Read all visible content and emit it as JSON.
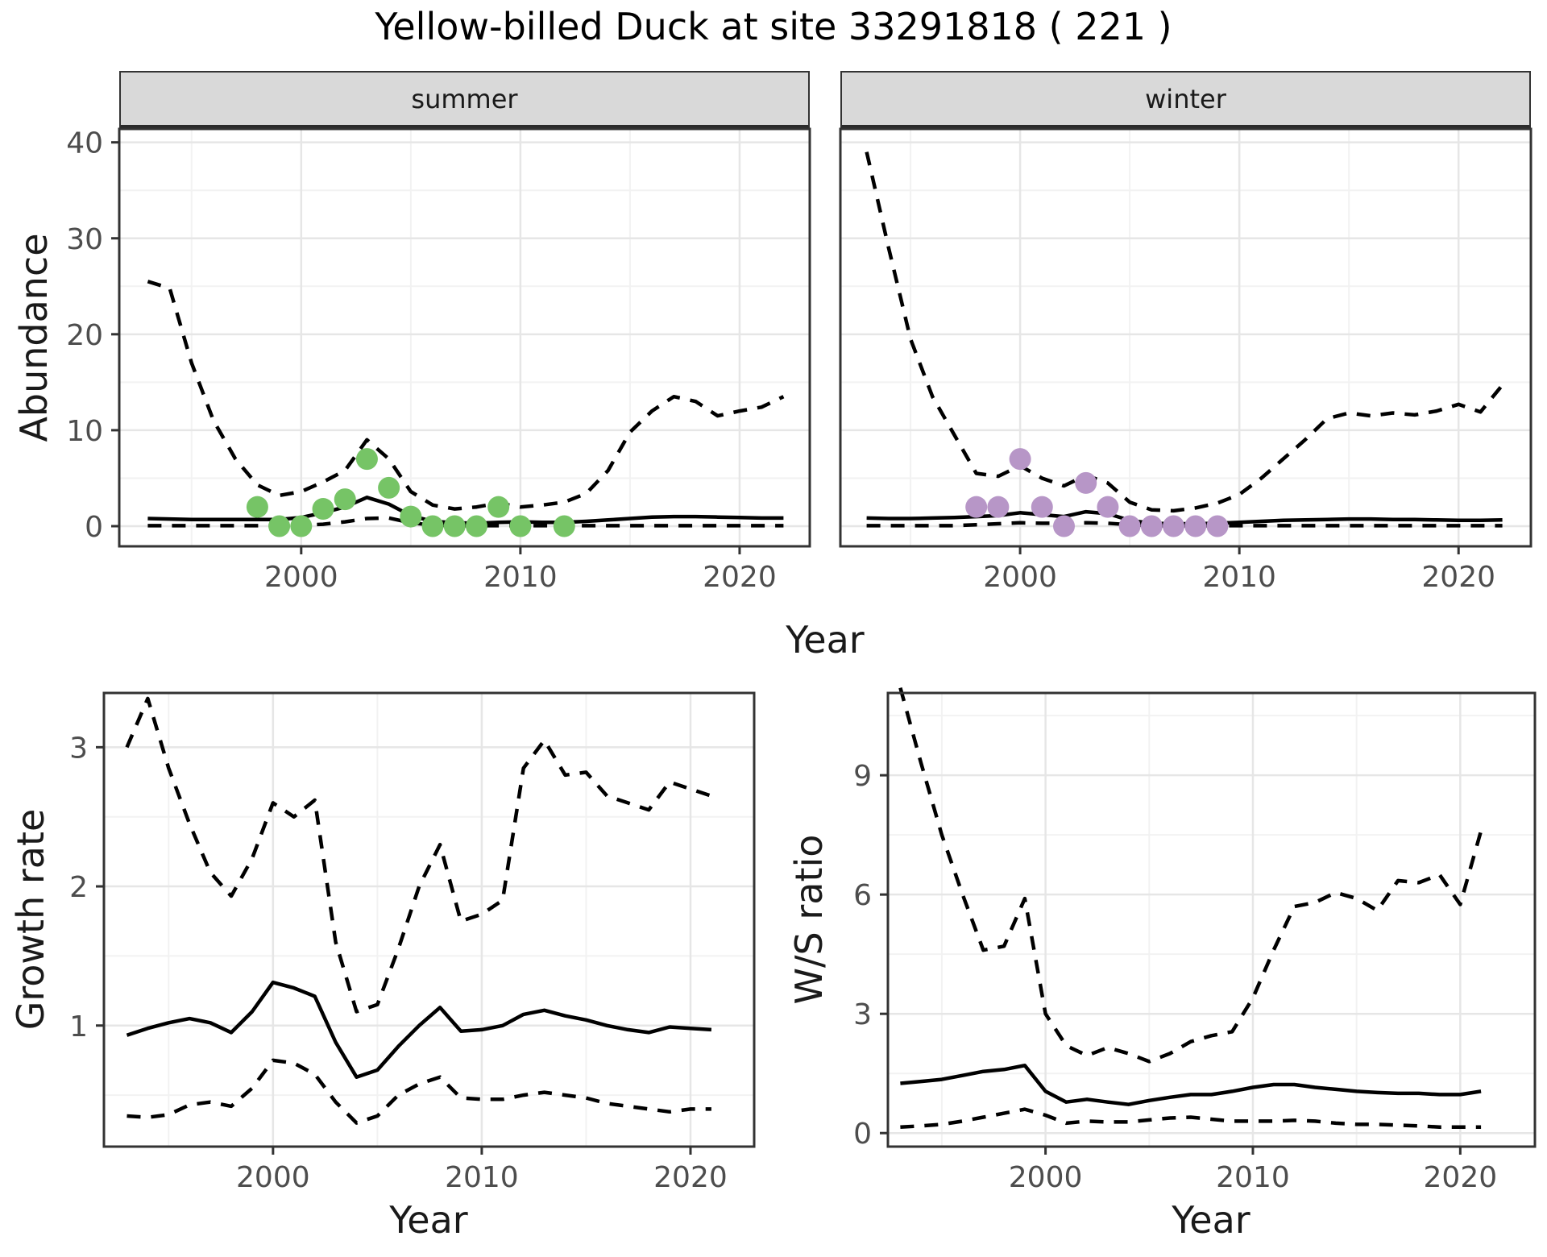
{
  "title": "Yellow-billed Duck at site 33291818 ( 221 )",
  "colors": {
    "summer_points": "#76c466",
    "winter_points": "#b796c7",
    "line": "#000000",
    "strip_background": "#d9d9d9",
    "grid_major": "#e6e6e6",
    "grid_minor": "#f2f2f2",
    "panel_border": "#333333",
    "axis_text": "#4d4d4d"
  },
  "chart_data": [
    {
      "id": "abundance-summer",
      "type": "line",
      "facet_label": "summer",
      "xlabel": "Year",
      "ylabel": "Abundance",
      "xlim": [
        1991.7,
        2023.2
      ],
      "ylim": [
        -2.1,
        41.4
      ],
      "xticks": [
        2000,
        2010,
        2020
      ],
      "yticks": [
        0,
        10,
        20,
        30,
        40
      ],
      "x": [
        1993,
        1994,
        1995,
        1996,
        1997,
        1998,
        1999,
        2000,
        2001,
        2002,
        2003,
        2004,
        2005,
        2006,
        2007,
        2008,
        2009,
        2010,
        2011,
        2012,
        2013,
        2014,
        2015,
        2016,
        2017,
        2018,
        2019,
        2020,
        2021,
        2022
      ],
      "series": [
        {
          "name": "upper-95-ci",
          "style": "dashed",
          "values": [
            25.5,
            24.8,
            17,
            11,
            7,
            4.3,
            3.2,
            3.6,
            4.6,
            5.8,
            9,
            7,
            3.6,
            2.2,
            1.8,
            2,
            2.4,
            2,
            2.2,
            2.5,
            3.4,
            5.8,
            9.8,
            12,
            13.5,
            13,
            11.5,
            12,
            12.4,
            13.5
          ]
        },
        {
          "name": "modelled-abundance",
          "style": "solid",
          "values": [
            0.8,
            0.75,
            0.7,
            0.7,
            0.7,
            0.7,
            0.7,
            0.9,
            1.4,
            2.0,
            3.0,
            2.3,
            1.1,
            0.5,
            0.35,
            0.3,
            0.4,
            0.45,
            0.4,
            0.4,
            0.5,
            0.65,
            0.8,
            0.95,
            1.0,
            1.0,
            0.95,
            0.9,
            0.85,
            0.85
          ]
        },
        {
          "name": "lower-95-ci",
          "style": "dashed",
          "values": [
            0.05,
            0.05,
            0.05,
            0.05,
            0.05,
            0.05,
            0.05,
            0.1,
            0.2,
            0.45,
            0.8,
            0.85,
            0.35,
            0.1,
            0.05,
            0.05,
            0.05,
            0.05,
            0.05,
            0.05,
            0.05,
            0.05,
            0.05,
            0.05,
            0.05,
            0.05,
            0.05,
            0.05,
            0.05,
            0.05
          ]
        }
      ],
      "points": {
        "name": "observed-counts-summer",
        "color": "#76c466",
        "x": [
          1998,
          1999,
          2000,
          2001,
          2002,
          2003,
          2004,
          2005,
          2006,
          2007,
          2008,
          2009,
          2010,
          2012
        ],
        "y": [
          2,
          0,
          0,
          1.8,
          2.8,
          7,
          4,
          1,
          0,
          0,
          0,
          2,
          0,
          0
        ]
      }
    },
    {
      "id": "abundance-winter",
      "type": "line",
      "facet_label": "winter",
      "xlabel": "Year",
      "ylabel": "Abundance",
      "xlim": [
        1991.8,
        2023.3
      ],
      "ylim": [
        -2.1,
        41.4
      ],
      "xticks": [
        2000,
        2010,
        2020
      ],
      "yticks": [
        0,
        10,
        20,
        30,
        40
      ],
      "x": [
        1993,
        1994,
        1995,
        1996,
        1997,
        1998,
        1999,
        2000,
        2001,
        2002,
        2003,
        2004,
        2005,
        2006,
        2007,
        2008,
        2009,
        2010,
        2011,
        2012,
        2013,
        2014,
        2015,
        2016,
        2017,
        2018,
        2019,
        2020,
        2021,
        2022
      ],
      "series": [
        {
          "name": "upper-95-ci",
          "style": "dashed",
          "values": [
            39,
            29,
            19.5,
            13.5,
            9.5,
            5.5,
            5.2,
            6.3,
            5.0,
            4.2,
            5.3,
            4.5,
            2.5,
            1.7,
            1.6,
            1.9,
            2.4,
            3.3,
            5.0,
            7.0,
            9.0,
            11.2,
            11.8,
            11.5,
            11.8,
            11.6,
            12.0,
            12.7,
            11.9,
            14.7
          ]
        },
        {
          "name": "modelled-abundance",
          "style": "solid",
          "values": [
            0.85,
            0.8,
            0.8,
            0.85,
            0.9,
            1.0,
            1.1,
            1.4,
            1.2,
            1.0,
            1.5,
            1.3,
            0.6,
            0.3,
            0.25,
            0.25,
            0.3,
            0.4,
            0.5,
            0.6,
            0.65,
            0.7,
            0.75,
            0.75,
            0.7,
            0.7,
            0.65,
            0.6,
            0.6,
            0.65
          ]
        },
        {
          "name": "lower-95-ci",
          "style": "dashed",
          "values": [
            0.05,
            0.05,
            0.05,
            0.05,
            0.05,
            0.15,
            0.25,
            0.35,
            0.3,
            0.3,
            0.35,
            0.3,
            0.15,
            0.05,
            0.05,
            0.05,
            0.05,
            0.05,
            0.05,
            0.05,
            0.05,
            0.05,
            0.05,
            0.05,
            0.05,
            0.05,
            0.05,
            0.05,
            0.05,
            0.05
          ]
        }
      ],
      "points": {
        "name": "observed-counts-winter",
        "color": "#b796c7",
        "x": [
          1998,
          1999,
          2000,
          2001,
          2002,
          2003,
          2004,
          2005,
          2006,
          2007,
          2008,
          2009
        ],
        "y": [
          2,
          2,
          7,
          2,
          0,
          4.5,
          2,
          0,
          0,
          0,
          0,
          0
        ]
      }
    },
    {
      "id": "growth-rate",
      "type": "line",
      "facet_label": "",
      "xlabel": "Year",
      "ylabel": "Growth rate",
      "xlim": [
        1991.9,
        2023.05
      ],
      "ylim": [
        0.13,
        3.39
      ],
      "xticks": [
        2000,
        2010,
        2020
      ],
      "yticks": [
        1,
        2,
        3
      ],
      "x": [
        1993,
        1994,
        1995,
        1996,
        1997,
        1998,
        1999,
        2000,
        2001,
        2002,
        2003,
        2004,
        2005,
        2006,
        2007,
        2008,
        2009,
        2010,
        2011,
        2012,
        2013,
        2014,
        2015,
        2016,
        2017,
        2018,
        2019,
        2020,
        2021
      ],
      "series": [
        {
          "name": "upper-95-ci",
          "style": "dashed",
          "values": [
            3.0,
            3.35,
            2.85,
            2.45,
            2.1,
            1.93,
            2.2,
            2.6,
            2.5,
            2.62,
            1.6,
            1.1,
            1.15,
            1.55,
            2.0,
            2.3,
            1.75,
            1.8,
            1.9,
            2.85,
            3.05,
            2.8,
            2.82,
            2.65,
            2.6,
            2.55,
            2.75,
            2.7,
            2.65
          ]
        },
        {
          "name": "modelled-growth-rate",
          "style": "solid",
          "values": [
            0.93,
            0.98,
            1.02,
            1.05,
            1.02,
            0.95,
            1.1,
            1.31,
            1.27,
            1.21,
            0.88,
            0.63,
            0.68,
            0.85,
            1.0,
            1.13,
            0.96,
            0.97,
            1.0,
            1.08,
            1.11,
            1.07,
            1.04,
            1.0,
            0.97,
            0.95,
            0.99,
            0.98,
            0.97
          ]
        },
        {
          "name": "lower-95-ci",
          "style": "dashed",
          "values": [
            0.35,
            0.34,
            0.36,
            0.43,
            0.45,
            0.42,
            0.55,
            0.75,
            0.73,
            0.65,
            0.45,
            0.3,
            0.35,
            0.5,
            0.58,
            0.63,
            0.48,
            0.47,
            0.47,
            0.5,
            0.52,
            0.5,
            0.48,
            0.44,
            0.42,
            0.4,
            0.38,
            0.4,
            0.4
          ]
        }
      ],
      "points": null
    },
    {
      "id": "ws-ratio",
      "type": "line",
      "facet_label": "",
      "xlabel": "Year",
      "ylabel": "W/S ratio",
      "xlim": [
        1992.4,
        2023.6
      ],
      "ylim": [
        -0.34,
        11.07
      ],
      "xticks": [
        2000,
        2010,
        2020
      ],
      "yticks": [
        0,
        3,
        6,
        9
      ],
      "x": [
        1993,
        1994,
        1995,
        1996,
        1997,
        1998,
        1999,
        2000,
        2001,
        2002,
        2003,
        2004,
        2005,
        2006,
        2007,
        2008,
        2009,
        2010,
        2011,
        2012,
        2013,
        2014,
        2015,
        2016,
        2017,
        2018,
        2019,
        2020,
        2021
      ],
      "series": [
        {
          "name": "upper-95-ci",
          "style": "dashed",
          "values": [
            11.2,
            9.3,
            7.5,
            6.0,
            4.6,
            4.7,
            5.9,
            3.0,
            2.2,
            1.95,
            2.15,
            2.0,
            1.8,
            2.0,
            2.3,
            2.45,
            2.55,
            3.4,
            4.6,
            5.7,
            5.8,
            6.05,
            5.9,
            5.6,
            6.35,
            6.3,
            6.5,
            5.75,
            7.6
          ]
        },
        {
          "name": "modelled-ws-ratio",
          "style": "solid",
          "values": [
            1.25,
            1.3,
            1.35,
            1.45,
            1.55,
            1.6,
            1.7,
            1.05,
            0.78,
            0.85,
            0.78,
            0.72,
            0.82,
            0.9,
            0.97,
            0.97,
            1.05,
            1.15,
            1.22,
            1.22,
            1.15,
            1.1,
            1.05,
            1.02,
            1.0,
            1.0,
            0.97,
            0.97,
            1.05
          ]
        },
        {
          "name": "lower-95-ci",
          "style": "dashed",
          "values": [
            0.15,
            0.18,
            0.22,
            0.3,
            0.4,
            0.5,
            0.6,
            0.45,
            0.25,
            0.3,
            0.28,
            0.28,
            0.33,
            0.38,
            0.4,
            0.35,
            0.3,
            0.3,
            0.3,
            0.32,
            0.3,
            0.25,
            0.22,
            0.22,
            0.2,
            0.18,
            0.15,
            0.15,
            0.15
          ]
        }
      ],
      "points": null
    }
  ]
}
